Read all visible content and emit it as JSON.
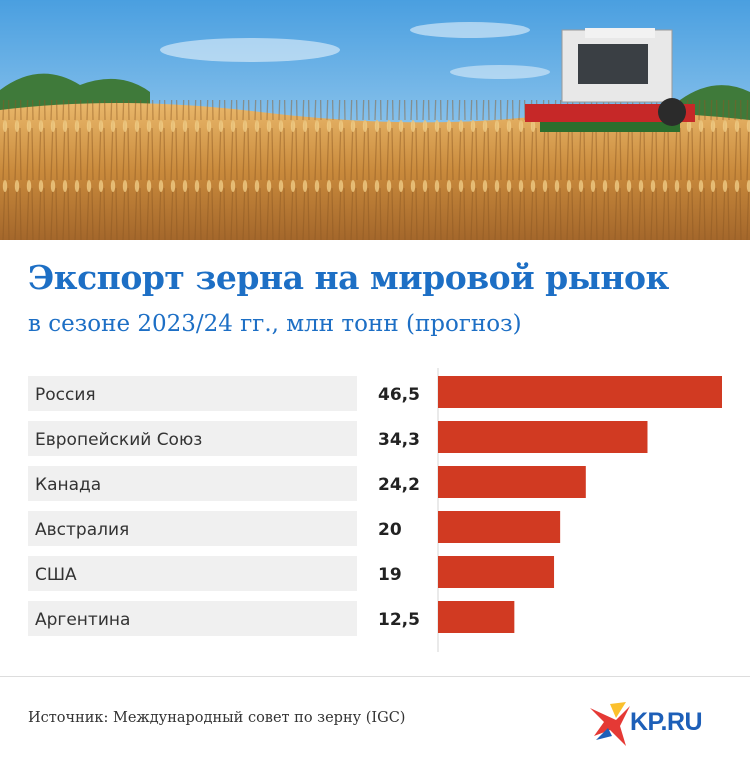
{
  "header": {
    "title": "Экспорт зерна на мировой рынок",
    "subtitle": "в сезоне 2023/24 гг., млн тонн (прогноз)"
  },
  "footer": {
    "source": "Источник: Международный совет по зерну (IGC)",
    "logo_text": "KP.RU"
  },
  "colors": {
    "title": "#1d6fc5",
    "bar": "#d13a22",
    "row_bg": "#f0f0f0"
  },
  "chart_data": {
    "type": "bar",
    "orientation": "horizontal",
    "categories": [
      "Россия",
      "Европейский Союз",
      "Канада",
      "Австралия",
      "США",
      "Аргентина"
    ],
    "values": [
      46.5,
      34.3,
      24.2,
      20,
      19,
      12.5
    ],
    "value_labels": [
      "46,5",
      "34,3",
      "24,2",
      "20",
      "19",
      "12,5"
    ],
    "xlim": [
      0,
      46.5
    ],
    "grid": false,
    "legend": "none"
  }
}
